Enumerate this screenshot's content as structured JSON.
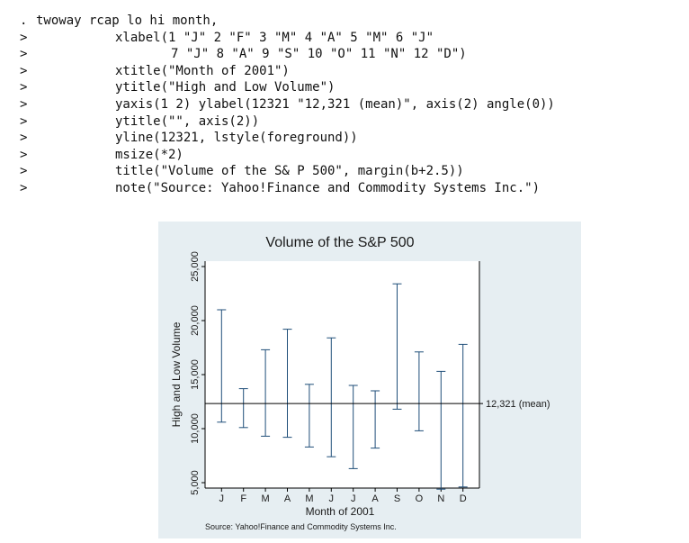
{
  "command": {
    "lines": [
      {
        "prompt": ".",
        "text": "twoway rcap lo hi month,"
      },
      {
        "prompt": ">",
        "text": "xlabel(1 \"J\" 2 \"F\" 3 \"M\" 4 \"A\" 5 \"M\" 6 \"J\""
      },
      {
        "prompt": ">",
        "text": "7 \"J\" 8 \"A\" 9 \"S\" 10 \"O\" 11 \"N\" 12 \"D\")"
      },
      {
        "prompt": ">",
        "text": "xtitle(\"Month of 2001\")"
      },
      {
        "prompt": ">",
        "text": "ytitle(\"High and Low Volume\")"
      },
      {
        "prompt": ">",
        "text": "yaxis(1 2) ylabel(12321 \"12,321 (mean)\", axis(2) angle(0))"
      },
      {
        "prompt": ">",
        "text": "ytitle(\"\", axis(2))"
      },
      {
        "prompt": ">",
        "text": "yline(12321, lstyle(foreground))"
      },
      {
        "prompt": ">",
        "text": "msize(*2)"
      },
      {
        "prompt": ">",
        "text": "title(\"Volume of the S& P 500\", margin(b+2.5))"
      },
      {
        "prompt": ">",
        "text": "note(\"Source: Yahoo!Finance and Commodity Systems Inc.\")"
      }
    ]
  },
  "chart_data": {
    "type": "rcap",
    "title": "Volume of the S&P 500",
    "xlabel": "Month of 2001",
    "ylabel": "High and Low Volume",
    "note": "Source: Yahoo!Finance and Commodity Systems Inc.",
    "categories": [
      "J",
      "F",
      "M",
      "A",
      "M",
      "J",
      "J",
      "A",
      "S",
      "O",
      "N",
      "D"
    ],
    "x": [
      1,
      2,
      3,
      4,
      5,
      6,
      7,
      8,
      9,
      10,
      11,
      12
    ],
    "lo": [
      10600,
      10100,
      9300,
      9200,
      8300,
      7400,
      6300,
      8200,
      11800,
      9800,
      4400,
      4600
    ],
    "hi": [
      21000,
      13700,
      17300,
      19200,
      14100,
      18400,
      14000,
      13500,
      23400,
      17100,
      15300,
      17800
    ],
    "ylim": [
      4500,
      25500
    ],
    "yticks": [
      5000,
      10000,
      15000,
      20000,
      25000
    ],
    "ytick_labels": [
      "5,000",
      "10,000",
      "15,000",
      "20,000",
      "25,000"
    ],
    "mean_line": 12321,
    "mean_label": "12,321 (mean)",
    "grid": false,
    "colors": {
      "background": "#e6eef2",
      "plot_region": "#ffffff",
      "cap": "#1f4e79",
      "text": "#1a1a1a"
    }
  }
}
